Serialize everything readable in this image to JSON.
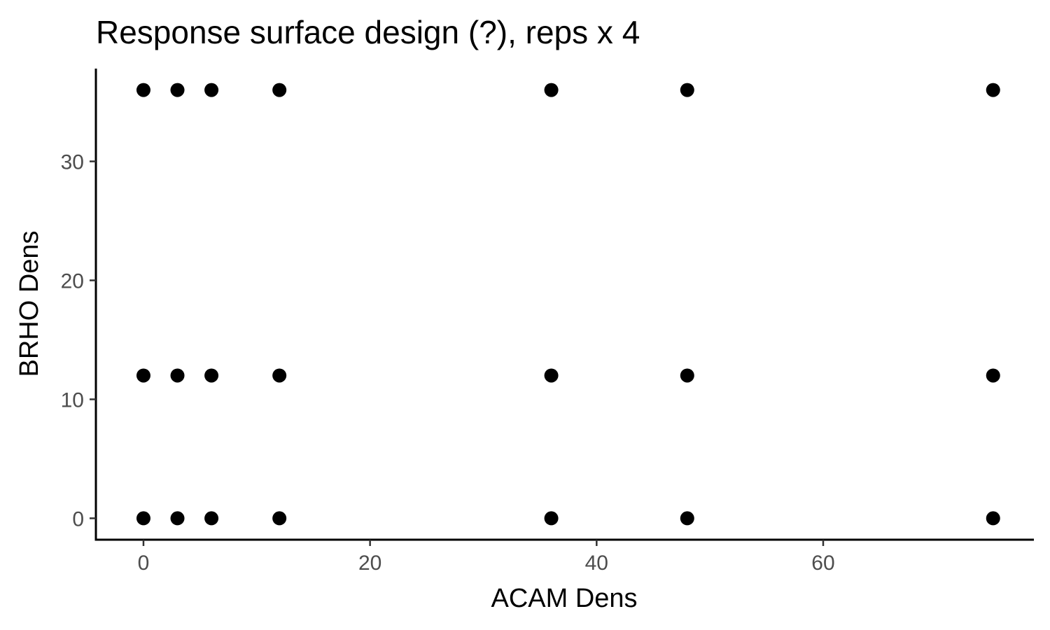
{
  "chart_data": {
    "type": "scatter",
    "title": "Response surface design (?), reps x 4",
    "xlabel": "ACAM Dens",
    "ylabel": "BRHO Dens",
    "xlim": [
      -4.2,
      78.6
    ],
    "ylim": [
      -1.8,
      37.8
    ],
    "x_ticks": [
      0,
      20,
      40,
      60
    ],
    "y_ticks": [
      0,
      10,
      20,
      30
    ],
    "grid": false,
    "point_color": "#000000",
    "series": [
      {
        "points": [
          {
            "x": 0,
            "y": 0
          },
          {
            "x": 3,
            "y": 0
          },
          {
            "x": 6,
            "y": 0
          },
          {
            "x": 12,
            "y": 0
          },
          {
            "x": 36,
            "y": 0
          },
          {
            "x": 48,
            "y": 0
          },
          {
            "x": 75,
            "y": 0
          },
          {
            "x": 0,
            "y": 12
          },
          {
            "x": 3,
            "y": 12
          },
          {
            "x": 6,
            "y": 12
          },
          {
            "x": 12,
            "y": 12
          },
          {
            "x": 36,
            "y": 12
          },
          {
            "x": 48,
            "y": 12
          },
          {
            "x": 75,
            "y": 12
          },
          {
            "x": 0,
            "y": 36
          },
          {
            "x": 3,
            "y": 36
          },
          {
            "x": 6,
            "y": 36
          },
          {
            "x": 12,
            "y": 36
          },
          {
            "x": 36,
            "y": 36
          },
          {
            "x": 48,
            "y": 36
          },
          {
            "x": 75,
            "y": 36
          }
        ]
      }
    ]
  }
}
